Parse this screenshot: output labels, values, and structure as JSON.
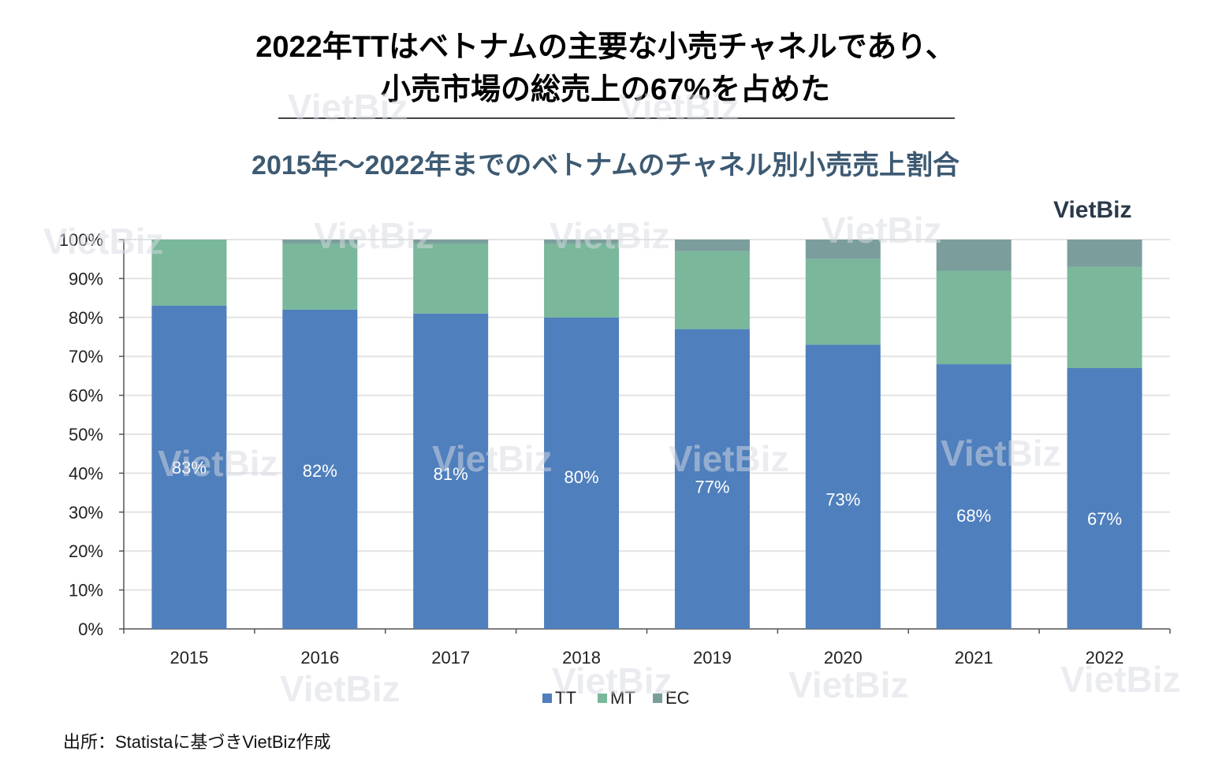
{
  "title_line1": "2022年TTはベトナムの主要な小売チャネルであり、",
  "title_line2": "小売市場の総売上の67%を占めた",
  "logo": "VietBiz",
  "watermark": "VietBiz",
  "source": "出所：Statistaに基づきVietBiz作成",
  "chart_data": {
    "type": "bar",
    "stacked": true,
    "title": "2015年～2022年までのベトナムのチャネル別小売売上割合",
    "categories": [
      "2015",
      "2016",
      "2017",
      "2018",
      "2019",
      "2020",
      "2021",
      "2022"
    ],
    "series": [
      {
        "name": "TT",
        "color": "#4f7fbc",
        "values": [
          83,
          82,
          81,
          80,
          77,
          73,
          68,
          67
        ],
        "labels": [
          "83%",
          "82%",
          "81%",
          "80%",
          "77%",
          "73%",
          "68%",
          "67%"
        ]
      },
      {
        "name": "MT",
        "color": "#7ab79b",
        "values": [
          17,
          17,
          18,
          19,
          20,
          22,
          24,
          26
        ]
      },
      {
        "name": "EC",
        "color": "#7b9e9c",
        "values": [
          0,
          1,
          1,
          1,
          3,
          5,
          8,
          7
        ]
      }
    ],
    "yticks": [
      "0%",
      "10%",
      "20%",
      "30%",
      "40%",
      "50%",
      "60%",
      "70%",
      "80%",
      "90%",
      "100%"
    ],
    "ylim": [
      0,
      100
    ],
    "grid": true,
    "legend": "bottom"
  }
}
